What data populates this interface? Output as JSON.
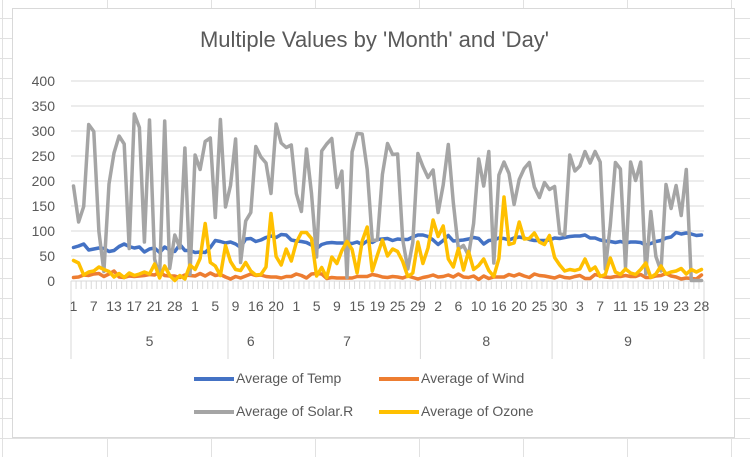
{
  "chart_data": {
    "type": "line",
    "title": "Multiple Values by 'Month' and 'Day'",
    "ylim": [
      0,
      400
    ],
    "yticks": [
      0,
      50,
      100,
      150,
      200,
      250,
      300,
      350,
      400
    ],
    "x_day_labels": [
      "1",
      "7",
      "13",
      "17",
      "21",
      "28",
      "1",
      "5",
      "9",
      "16",
      "20",
      "1",
      "5",
      "9",
      "15",
      "19",
      "25",
      "29",
      "2",
      "6",
      "10",
      "16",
      "20",
      "25",
      "30",
      "3",
      "7",
      "11",
      "15",
      "19",
      "23",
      "28"
    ],
    "month_groups": [
      {
        "label": "5",
        "start": 0,
        "end": 31
      },
      {
        "label": "6",
        "start": 31,
        "end": 40
      },
      {
        "label": "7",
        "start": 40,
        "end": 69
      },
      {
        "label": "8",
        "start": 69,
        "end": 95
      },
      {
        "label": "9",
        "start": 95,
        "end": 125
      }
    ],
    "n_points": 125,
    "series": [
      {
        "name": "Average of Temp",
        "color": "#4472C4",
        "values": [
          67,
          70,
          74,
          62,
          64,
          66,
          65,
          59,
          61,
          69,
          74,
          69,
          66,
          68,
          58,
          64,
          66,
          57,
          68,
          62,
          59,
          73,
          61,
          61,
          57,
          58,
          57,
          67,
          81,
          79,
          76,
          78,
          74,
          67,
          84,
          85,
          79,
          82,
          87,
          90,
          87,
          93,
          92,
          82,
          80,
          79,
          77,
          72,
          65,
          73,
          76,
          77,
          76,
          76,
          76,
          75,
          78,
          73,
          80,
          77,
          83,
          84,
          85,
          81,
          84,
          83,
          83,
          88,
          92,
          92,
          89,
          82,
          73,
          81,
          91,
          80,
          81,
          82,
          84,
          87,
          85,
          74,
          81,
          82,
          86,
          85,
          82,
          86,
          88,
          86,
          83,
          81,
          81,
          81,
          82,
          86,
          85,
          87,
          89,
          90,
          90,
          92,
          86,
          86,
          82,
          80,
          79,
          77,
          79,
          76,
          78,
          78,
          77,
          72,
          75,
          79,
          81,
          86,
          88,
          97,
          94,
          96,
          94,
          91,
          92
        ]
      },
      {
        "name": "Average of Wind",
        "color": "#ED7D31",
        "values": [
          7,
          8,
          12,
          11,
          14,
          15,
          9,
          14,
          20,
          8,
          7,
          10,
          9,
          10,
          11,
          13,
          12,
          18,
          11,
          10,
          10,
          7,
          12,
          11,
          10,
          15,
          10,
          16,
          11,
          13,
          8,
          4,
          9,
          6,
          10,
          14,
          11,
          12,
          9,
          8,
          8,
          6,
          9,
          9,
          14,
          11,
          6,
          14,
          15,
          14,
          5,
          7,
          6,
          6,
          6,
          6,
          9,
          9,
          9,
          13,
          11,
          8,
          7,
          9,
          8,
          6,
          10,
          7,
          4,
          7,
          9,
          12,
          8,
          9,
          12,
          8,
          14,
          8,
          7,
          10,
          3,
          10,
          5,
          8,
          8,
          8,
          13,
          10,
          14,
          10,
          7,
          14,
          11,
          10,
          8,
          6,
          10,
          7,
          6,
          9,
          11,
          5,
          5,
          13,
          10,
          8,
          7,
          9,
          9,
          11,
          9,
          9,
          13,
          7,
          7,
          10,
          11,
          15,
          10,
          8,
          4,
          6,
          5,
          4,
          12
        ]
      },
      {
        "name": "Average of Solar.R",
        "color": "#A5A5A5",
        "values": [
          190,
          118,
          149,
          313,
          299,
          99,
          19,
          194,
          256,
          290,
          274,
          65,
          334,
          307,
          78,
          322,
          44,
          8,
          320,
          25,
          92,
          66,
          266,
          13,
          252,
          223,
          279,
          286,
          127,
          323,
          148,
          191,
          284,
          37,
          120,
          137,
          269,
          248,
          236,
          175,
          314,
          276,
          267,
          272,
          175,
          139,
          264,
          175,
          48,
          260,
          274,
          285,
          187,
          220,
          7,
          258,
          295,
          294,
          223,
          81,
          82,
          213,
          275,
          253,
          254,
          83,
          24,
          77,
          255,
          229,
          207,
          222,
          137,
          192,
          273,
          157,
          64,
          71,
          51,
          115,
          244,
          190,
          259,
          36,
          212,
          238,
          215,
          153,
          203,
          225,
          237,
          188,
          167,
          197,
          183,
          189,
          95,
          92,
          252,
          220,
          230,
          259,
          236,
          259,
          238,
          24,
          112,
          237,
          224,
          27,
          238,
          201,
          238,
          14,
          139,
          49,
          20,
          193,
          145,
          191,
          131,
          223,
          1,
          1,
          1
        ]
      },
      {
        "name": "Average of Ozone",
        "color": "#FFC000",
        "values": [
          41,
          36,
          12,
          18,
          20,
          28,
          23,
          19,
          8,
          15,
          7,
          16,
          11,
          14,
          18,
          14,
          34,
          6,
          30,
          11,
          1,
          11,
          4,
          32,
          23,
          45,
          115,
          37,
          30,
          11,
          71,
          39,
          23,
          21,
          37,
          20,
          12,
          13,
          28,
          135,
          49,
          32,
          64,
          40,
          77,
          97,
          97,
          85,
          10,
          27,
          7,
          48,
          35,
          61,
          79,
          63,
          16,
          80,
          108,
          20,
          52,
          82,
          50,
          64,
          59,
          39,
          9,
          16,
          78,
          35,
          66,
          122,
          89,
          110,
          44,
          28,
          65,
          22,
          59,
          23,
          31,
          44,
          21,
          9,
          45,
          168,
          73,
          76,
          118,
          84,
          85,
          96,
          78,
          73,
          91,
          47,
          32,
          20,
          23,
          21,
          24,
          44,
          21,
          28,
          9,
          13,
          46,
          18,
          13,
          24,
          16,
          13,
          23,
          36,
          7,
          14,
          30,
          14,
          18,
          20,
          25,
          14,
          23,
          18,
          23
        ]
      }
    ]
  }
}
